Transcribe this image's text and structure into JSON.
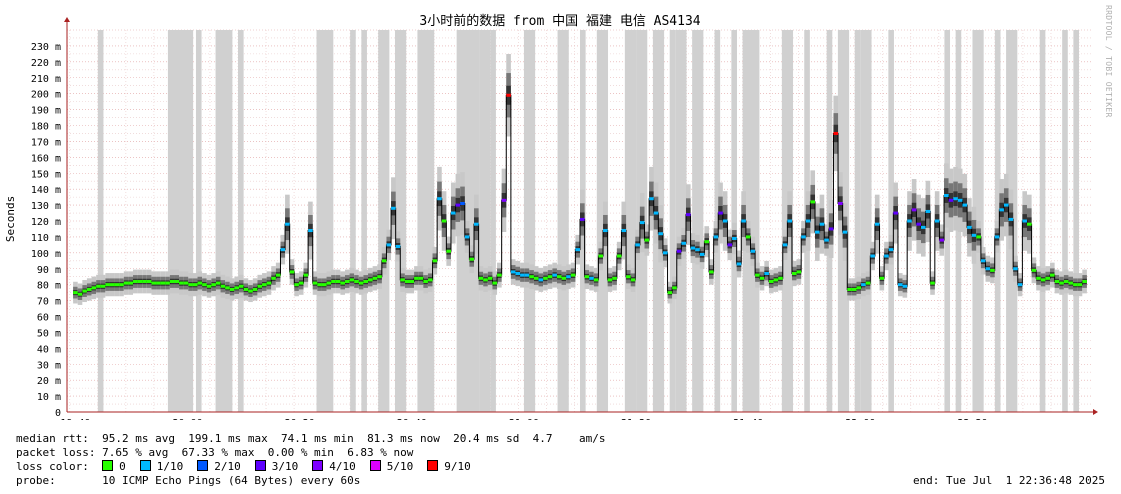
{
  "chart_data": {
    "type": "line",
    "title": "3小时前的数据 from 中国 福建 电信 AS4134",
    "ylabel": "Seconds",
    "xlabel": "",
    "ylim": [
      0,
      240
    ],
    "yticks": [
      "0",
      "10 m",
      "20 m",
      "30 m",
      "40 m",
      "50 m",
      "60 m",
      "70 m",
      "80 m",
      "90 m",
      "100 m",
      "110 m",
      "120 m",
      "130 m",
      "140 m",
      "150 m",
      "160 m",
      "170 m",
      "180 m",
      "190 m",
      "200 m",
      "210 m",
      "220 m",
      "230 m"
    ],
    "xticks": [
      "19:40",
      "20:00",
      "20:20",
      "20:40",
      "21:00",
      "21:20",
      "21:40",
      "22:00",
      "22:20"
    ],
    "x_start_time": "19:40",
    "x_range_minutes": [
      -1.5,
      181.5
    ],
    "series": [
      {
        "name": "median rtt",
        "unit": "ms",
        "values": [
          75,
          74,
          76,
          77,
          78,
          79,
          79,
          80,
          80,
          80,
          80,
          81,
          81,
          82,
          82,
          82,
          82,
          81,
          81,
          81,
          81,
          82,
          82,
          81,
          81,
          80,
          80,
          81,
          80,
          79,
          80,
          81,
          79,
          78,
          77,
          78,
          79,
          77,
          76,
          77,
          79,
          80,
          81,
          84,
          86,
          102,
          118,
          88,
          80,
          81,
          86,
          114,
          81,
          80,
          80,
          81,
          82,
          82,
          81,
          82,
          83,
          82,
          81,
          82,
          83,
          84,
          85,
          95,
          105,
          128,
          104,
          83,
          82,
          82,
          84,
          84,
          82,
          83,
          95,
          134,
          120,
          101,
          125,
          130,
          131,
          110,
          96,
          118,
          84,
          83,
          84,
          81,
          86,
          133,
          199,
          88,
          87,
          86,
          86,
          85,
          84,
          83,
          84,
          85,
          86,
          85,
          84,
          85,
          86,
          102,
          121,
          85,
          84,
          83,
          98,
          114,
          83,
          84,
          98,
          114,
          85,
          83,
          105,
          119,
          108,
          134,
          125,
          112,
          100,
          75,
          78,
          101,
          106,
          124,
          103,
          102,
          99,
          107,
          88,
          110,
          125,
          120,
          105,
          109,
          93,
          120,
          110,
          101,
          86,
          84,
          87,
          82,
          83,
          84,
          105,
          120,
          87,
          88,
          110,
          120,
          132,
          113,
          118,
          108,
          115,
          175,
          131,
          113,
          77,
          77,
          78,
          80,
          81,
          98,
          118,
          84,
          98,
          102,
          125,
          80,
          79,
          120,
          127,
          118,
          116,
          126,
          81,
          120,
          108,
          136,
          133,
          134,
          133,
          130,
          116,
          111,
          110,
          95,
          90,
          89,
          110,
          127,
          130,
          121,
          90,
          80,
          120,
          118,
          89,
          84,
          83,
          84,
          86,
          82,
          81,
          82,
          81,
          80,
          80,
          82
        ],
        "loss_tenths": [
          0,
          0,
          0,
          0,
          0,
          0,
          0,
          0,
          0,
          0,
          0,
          0,
          0,
          0,
          0,
          0,
          0,
          0,
          0,
          0,
          0,
          0,
          0,
          0,
          0,
          0,
          0,
          0,
          0,
          0,
          0,
          0,
          0,
          0,
          0,
          0,
          0,
          0,
          0,
          0,
          0,
          0,
          0,
          0,
          0,
          1,
          1,
          0,
          0,
          0,
          0,
          1,
          0,
          0,
          0,
          0,
          0,
          0,
          0,
          0,
          0,
          0,
          0,
          0,
          0,
          0,
          0,
          0,
          1,
          1,
          1,
          0,
          0,
          0,
          0,
          0,
          0,
          0,
          0,
          1,
          0,
          0,
          1,
          3,
          2,
          1,
          0,
          1,
          0,
          0,
          0,
          0,
          0,
          4,
          9,
          1,
          1,
          1,
          1,
          0,
          0,
          1,
          0,
          0,
          1,
          0,
          0,
          1,
          0,
          1,
          3,
          0,
          1,
          0,
          0,
          1,
          0,
          0,
          0,
          1,
          0,
          0,
          1,
          1,
          0,
          1,
          1,
          1,
          1,
          0,
          0,
          3,
          1,
          3,
          1,
          1,
          1,
          0,
          0,
          1,
          3,
          1,
          3,
          1,
          1,
          1,
          0,
          1,
          0,
          0,
          1,
          0,
          0,
          0,
          1,
          1,
          0,
          0,
          1,
          1,
          0,
          1,
          1,
          1,
          3,
          9,
          4,
          1,
          0,
          0,
          0,
          1,
          0,
          1,
          1,
          0,
          1,
          1,
          3,
          1,
          1,
          1,
          4,
          3,
          1,
          1,
          0,
          1,
          4,
          1,
          3,
          1,
          1,
          1,
          1,
          1,
          0,
          1,
          1,
          0,
          1,
          1,
          1,
          1,
          1,
          1,
          1,
          0,
          0,
          0,
          0,
          0,
          0,
          0,
          0,
          0,
          0,
          0,
          0,
          0,
          0
        ],
        "probe_loss_columns": [
          [
            4,
            5
          ],
          [
            16.5,
            21
          ],
          [
            21.5,
            22.5
          ],
          [
            25,
            28
          ],
          [
            29,
            30
          ],
          [
            43,
            46
          ],
          [
            49,
            50
          ],
          [
            51,
            52
          ],
          [
            54,
            56
          ],
          [
            57,
            59
          ],
          [
            61,
            62
          ],
          [
            62,
            64
          ],
          [
            68,
            72
          ],
          [
            72,
            74
          ],
          [
            74,
            75
          ],
          [
            80,
            82
          ],
          [
            86,
            88
          ],
          [
            90,
            91
          ],
          [
            93,
            95
          ],
          [
            98,
            100
          ],
          [
            100,
            102
          ],
          [
            103,
            105
          ],
          [
            106,
            107
          ],
          [
            107,
            109
          ],
          [
            110,
            112
          ],
          [
            114,
            115
          ],
          [
            117,
            118
          ],
          [
            119,
            122
          ],
          [
            126,
            128
          ],
          [
            130,
            131
          ],
          [
            134,
            135
          ],
          [
            136,
            137
          ],
          [
            137,
            138
          ],
          [
            139,
            140
          ],
          [
            140,
            142
          ],
          [
            145,
            146
          ],
          [
            155,
            156
          ],
          [
            157,
            158
          ],
          [
            160,
            162
          ],
          [
            164,
            165
          ],
          [
            166,
            168
          ],
          [
            172,
            173
          ],
          [
            176,
            177
          ],
          [
            178,
            179
          ]
        ]
      }
    ],
    "loss_color_legend": [
      {
        "label": "0",
        "color": "#26ff00"
      },
      {
        "label": "1/10",
        "color": "#00b8ff"
      },
      {
        "label": "2/10",
        "color": "#0059ff"
      },
      {
        "label": "3/10",
        "color": "#5e00ff"
      },
      {
        "label": "4/10",
        "color": "#7e00ff"
      },
      {
        "label": "5/10",
        "color": "#dd00ff"
      },
      {
        "label": "9/10",
        "color": "#ff0000"
      }
    ],
    "grid": true,
    "legend_position": "bottom-left"
  },
  "legend": {
    "median_label": "median rtt:",
    "median_avg": "95.2 ms avg",
    "median_max": "199.1 ms max",
    "median_min": "74.1 ms min",
    "median_now": "81.3 ms now",
    "median_sd": "20.4 ms sd",
    "median_amps": "4.7    am/s",
    "loss_label": "packet loss:",
    "loss_avg": "7.65 % avg",
    "loss_max": "67.33 % max",
    "loss_min": "0.00 % min",
    "loss_now": "6.83 % now",
    "color_label": "loss color:",
    "probe_label": "probe:",
    "probe_text": "10 ICMP Echo Pings (64 Bytes) every 60s",
    "end_text": "end: Tue Jul  1 22:36:48 2025"
  },
  "watermark": "RRDTOOL / TOBI OETIKER",
  "colors": {
    "grid_minor": "#e8c8c8",
    "grid_major": "#e0a0a0",
    "axis": "#aa2222",
    "loss_column": "#d0d0d0",
    "smoke_dark": "#000000",
    "median_line": "#000000"
  }
}
